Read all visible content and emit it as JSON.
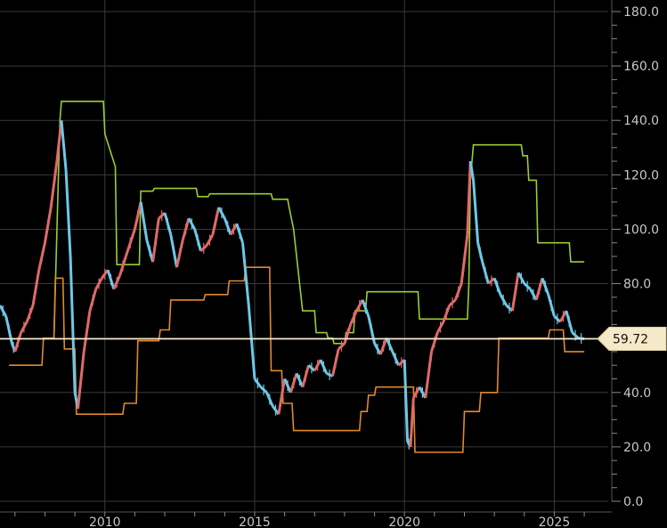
{
  "chart_data": {
    "type": "line",
    "title": "",
    "xlabel": "",
    "ylabel": "",
    "ylim": [
      0,
      180
    ],
    "xlim": [
      2006.5,
      2026.8
    ],
    "y_ticks": [
      "0.0",
      "20.0",
      "40.0",
      "60.0",
      "80.0",
      "100.0",
      "120.0",
      "140.0",
      "160.0",
      "180.0"
    ],
    "y_tick_values": [
      0,
      20,
      40,
      60,
      80,
      100,
      120,
      140,
      160,
      180
    ],
    "x_ticks": [
      "2010",
      "2015",
      "2020",
      "2025"
    ],
    "x_tick_values": [
      2010,
      2015,
      2020,
      2025
    ],
    "grid": true,
    "legend": "none",
    "current_price": {
      "label": "59.72",
      "value": 59.72,
      "color": "#f5e9c8"
    },
    "colors": {
      "background": "#000000",
      "grid": "#3a3a3a",
      "price_up": "#e06a6a",
      "price_down": "#6ec8e8",
      "upper_channel": "#9acd32",
      "lower_channel": "#e0892a",
      "price_line": "#f5e9c8"
    },
    "series": [
      {
        "role": "price",
        "x": [
          2006.5,
          2006.7,
          2006.9,
          2007.0,
          2007.2,
          2007.4,
          2007.6,
          2007.8,
          2008.0,
          2008.2,
          2008.4,
          2008.55,
          2008.7,
          2008.85,
          2009.0,
          2009.1,
          2009.3,
          2009.5,
          2009.7,
          2009.9,
          2010.1,
          2010.3,
          2010.5,
          2010.7,
          2011.0,
          2011.2,
          2011.4,
          2011.6,
          2011.8,
          2012.0,
          2012.2,
          2012.4,
          2012.6,
          2012.8,
          2013.0,
          2013.2,
          2013.4,
          2013.6,
          2013.8,
          2014.0,
          2014.2,
          2014.4,
          2014.6,
          2014.8,
          2015.0,
          2015.2,
          2015.4,
          2015.6,
          2015.8,
          2016.0,
          2016.2,
          2016.4,
          2016.6,
          2016.8,
          2017.0,
          2017.2,
          2017.4,
          2017.6,
          2017.8,
          2018.0,
          2018.2,
          2018.4,
          2018.6,
          2018.8,
          2019.0,
          2019.2,
          2019.4,
          2019.6,
          2019.8,
          2020.0,
          2020.1,
          2020.2,
          2020.3,
          2020.5,
          2020.7,
          2020.9,
          2021.1,
          2021.3,
          2021.5,
          2021.7,
          2021.9,
          2022.1,
          2022.2,
          2022.3,
          2022.45,
          2022.6,
          2022.8,
          2023.0,
          2023.2,
          2023.4,
          2023.6,
          2023.8,
          2024.0,
          2024.2,
          2024.4,
          2024.6,
          2024.8,
          2025.0,
          2025.2,
          2025.4,
          2025.6,
          2025.8,
          2026.0
        ],
        "values": [
          72,
          68,
          58,
          55,
          62,
          66,
          72,
          85,
          95,
          108,
          125,
          140,
          122,
          90,
          40,
          34,
          55,
          70,
          78,
          82,
          85,
          78,
          83,
          90,
          100,
          110,
          96,
          88,
          104,
          106,
          98,
          86,
          96,
          104,
          100,
          92,
          94,
          98,
          108,
          104,
          98,
          102,
          95,
          72,
          45,
          42,
          40,
          35,
          32,
          45,
          40,
          47,
          42,
          50,
          48,
          52,
          47,
          46,
          56,
          58,
          65,
          70,
          74,
          68,
          58,
          54,
          60,
          55,
          50,
          52,
          22,
          20,
          38,
          42,
          38,
          55,
          62,
          66,
          72,
          74,
          80,
          98,
          125,
          118,
          95,
          88,
          80,
          82,
          76,
          72,
          70,
          84,
          80,
          78,
          74,
          82,
          76,
          68,
          66,
          70,
          62,
          60,
          59.72
        ]
      },
      {
        "role": "upper channel",
        "x": [
          2008.3,
          2008.5,
          2008.55,
          2009.95,
          2010.0,
          2010.35,
          2010.4,
          2011.15,
          2011.2,
          2011.6,
          2011.65,
          2013.05,
          2013.1,
          2013.45,
          2013.5,
          2015.55,
          2015.6,
          2016.1,
          2016.15,
          2016.3,
          2016.6,
          2017.0,
          2017.05,
          2017.4,
          2017.45,
          2017.6,
          2017.65,
          2018.0,
          2018.05,
          2018.3,
          2018.35,
          2018.7,
          2018.75,
          2019.0,
          2019.05,
          2020.45,
          2020.5,
          2021.3,
          2021.35,
          2022.1,
          2022.15,
          2022.2,
          2022.3,
          2023.9,
          2023.95,
          2024.1,
          2024.15,
          2024.4,
          2024.45,
          2025.5,
          2025.55,
          2026.0
        ],
        "values": [
          60,
          140,
          147,
          147,
          135,
          123,
          87,
          87,
          114,
          114,
          115,
          115,
          112,
          112,
          113,
          113,
          111,
          111,
          108,
          100,
          70,
          70,
          62,
          62,
          60,
          60,
          58,
          58,
          62,
          62,
          70,
          70,
          77,
          77,
          77,
          77,
          67,
          67,
          67,
          67,
          80,
          118,
          131,
          131,
          127,
          127,
          118,
          118,
          95,
          95,
          88,
          88
        ]
      },
      {
        "role": "lower channel",
        "x": [
          2006.8,
          2007.9,
          2007.95,
          2008.3,
          2008.35,
          2008.6,
          2008.65,
          2009.0,
          2009.05,
          2010.6,
          2010.65,
          2011.05,
          2011.1,
          2011.8,
          2011.85,
          2012.15,
          2012.2,
          2013.3,
          2013.35,
          2014.1,
          2014.15,
          2014.65,
          2014.7,
          2015.5,
          2015.55,
          2015.9,
          2015.95,
          2016.25,
          2016.3,
          2018.5,
          2018.55,
          2018.75,
          2018.8,
          2019.0,
          2019.05,
          2020.3,
          2020.35,
          2021.95,
          2022.0,
          2022.5,
          2022.55,
          2023.1,
          2023.15,
          2024.8,
          2024.85,
          2025.3,
          2025.35,
          2026.0
        ],
        "values": [
          50,
          50,
          60,
          60,
          82,
          82,
          56,
          56,
          32,
          32,
          36,
          36,
          59,
          59,
          63,
          63,
          74,
          74,
          76,
          76,
          81,
          81,
          86,
          86,
          48,
          48,
          36,
          36,
          26,
          26,
          33,
          33,
          39,
          39,
          42,
          42,
          18,
          18,
          33,
          33,
          40,
          40,
          60,
          60,
          63,
          63,
          55,
          55
        ]
      }
    ]
  }
}
